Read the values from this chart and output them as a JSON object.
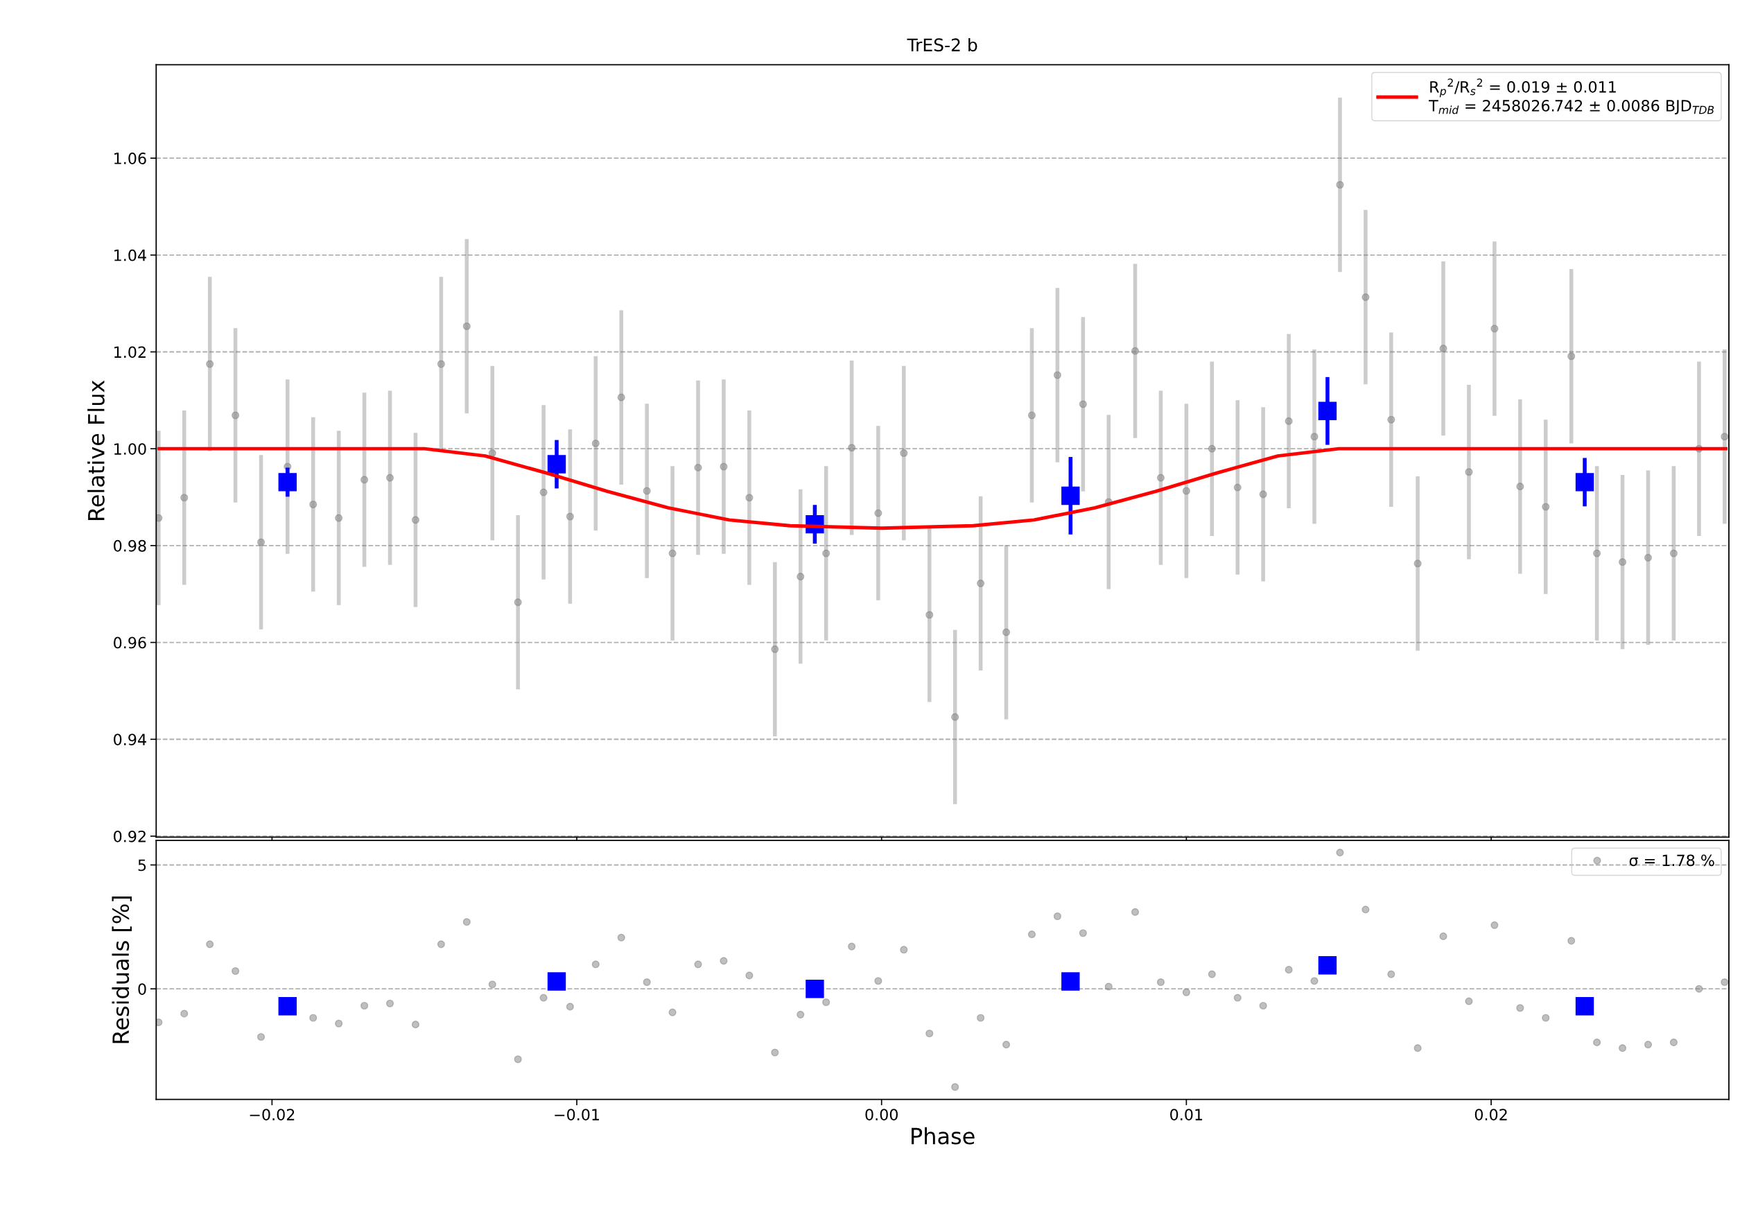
{
  "chart_data": [
    {
      "type": "scatter",
      "title": "TrES-2 b",
      "ylabel": "Relative Flux",
      "xlim": [
        -0.0238,
        0.0278
      ],
      "ylim": [
        0.9198,
        1.0793
      ],
      "xticks": [
        {
          "value": -0.02,
          "label": null
        },
        {
          "value": -0.01,
          "label": null
        },
        {
          "value": 0.0,
          "label": null
        },
        {
          "value": 0.01,
          "label": null
        },
        {
          "value": 0.02,
          "label": null
        }
      ],
      "yticks": [
        {
          "value": 0.92,
          "label": "0.92"
        },
        {
          "value": 0.94,
          "label": "0.94"
        },
        {
          "value": 0.96,
          "label": "0.96"
        },
        {
          "value": 0.98,
          "label": "0.98"
        },
        {
          "value": 1.0,
          "label": "1.00"
        },
        {
          "value": 1.02,
          "label": "1.02"
        },
        {
          "value": 1.04,
          "label": "1.04"
        },
        {
          "value": 1.06,
          "label": "1.06"
        }
      ],
      "tick_labels": "y",
      "grid": "y",
      "legend": "top right",
      "series": [
        {
          "color": "#808080",
          "marker": "circle",
          "x": [
            -0.02372,
            -0.02288,
            -0.02204,
            -0.0212,
            -0.02036,
            -0.01949,
            -0.01865,
            -0.01781,
            -0.01697,
            -0.01613,
            -0.01529,
            -0.01445,
            -0.01361,
            -0.01277,
            -0.01193,
            -0.01109,
            -0.01022,
            -0.00938,
            -0.00854,
            -0.0077,
            -0.00686,
            -0.00602,
            -0.00518,
            -0.00434,
            -0.0035,
            -0.00266,
            -0.00182,
            -0.00098,
            -0.00011,
            0.00073,
            0.00157,
            0.00241,
            0.00325,
            0.00409,
            0.00493,
            0.00577,
            0.00661,
            0.00745,
            0.00832,
            0.00916,
            0.01,
            0.01084,
            0.01168,
            0.01252,
            0.01336,
            0.0142,
            0.01504,
            0.01588,
            0.01672,
            0.01759,
            0.01843,
            0.01927,
            0.02011,
            0.02095,
            0.02179,
            0.02263,
            0.02347,
            0.02431,
            0.02515,
            0.02599,
            0.02682,
            0.02766
          ],
          "values": [
            0.9857,
            0.9899,
            1.0175,
            1.0069,
            0.9807,
            0.9963,
            0.9885,
            0.9857,
            0.9936,
            0.994,
            0.9853,
            1.0175,
            1.0253,
            0.9991,
            0.9683,
            0.991,
            0.986,
            1.0011,
            1.0106,
            0.9913,
            0.9784,
            0.9961,
            0.9963,
            0.9899,
            0.9586,
            0.9736,
            0.9784,
            1.0002,
            0.9867,
            0.9991,
            0.9657,
            0.9446,
            0.9722,
            0.9621,
            1.0069,
            1.0152,
            1.0092,
            0.989,
            1.0202,
            0.994,
            0.9913,
            1.0,
            0.992,
            0.9906,
            1.0057,
            1.0025,
            1.0545,
            1.0313,
            1.006,
            0.9763,
            1.0207,
            0.9952,
            1.0248,
            0.9922,
            0.988,
            1.0191,
            0.9784,
            0.9766,
            0.9775,
            0.9784,
            1.0,
            1.0025
          ],
          "errors": [
            0.018,
            0.018,
            0.018,
            0.018,
            0.018,
            0.018,
            0.018,
            0.018,
            0.018,
            0.018,
            0.018,
            0.018,
            0.018,
            0.018,
            0.018,
            0.018,
            0.018,
            0.018,
            0.018,
            0.018,
            0.018,
            0.018,
            0.018,
            0.018,
            0.018,
            0.018,
            0.018,
            0.018,
            0.018,
            0.018,
            0.018,
            0.018,
            0.018,
            0.018,
            0.018,
            0.018,
            0.018,
            0.018,
            0.018,
            0.018,
            0.018,
            0.018,
            0.018,
            0.018,
            0.018,
            0.018,
            0.018,
            0.018,
            0.018,
            0.018,
            0.018,
            0.018,
            0.018,
            0.018,
            0.018,
            0.018,
            0.018,
            0.018,
            0.018,
            0.018,
            0.018,
            0.018
          ]
        },
        {
          "type": "scatter",
          "color": "#0000ff",
          "marker": "square",
          "x": [
            -0.01949,
            -0.01066,
            -0.00219,
            0.0062,
            0.01463,
            0.02307
          ],
          "values": [
            0.9931,
            0.9968,
            0.9844,
            0.9903,
            1.0078,
            0.9931
          ],
          "errors": [
            0.003,
            0.005,
            0.004,
            0.008,
            0.007,
            0.005
          ]
        },
        {
          "type": "line",
          "color": "#ff0000",
          "name": "R$_{p}$$^{2}$/R$_{s}$$^{2}$ = 0.019 ± 0.011\nT$_{mid}$ = 2458026.742 ± 0.0086 BJD$_{TDB}$",
          "x": [
            -0.0237,
            -0.015,
            -0.013,
            -0.011,
            -0.009,
            -0.007,
            -0.005,
            -0.003,
            0.0,
            0.003,
            0.005,
            0.007,
            0.009,
            0.011,
            0.013,
            0.015,
            0.0277
          ],
          "values": [
            1.0,
            1.0,
            0.9985,
            0.995,
            0.9912,
            0.9878,
            0.9853,
            0.9841,
            0.9836,
            0.9841,
            0.9853,
            0.9878,
            0.9912,
            0.995,
            0.9985,
            1.0,
            1.0
          ]
        }
      ]
    },
    {
      "type": "scatter",
      "xlabel": "Phase",
      "ylabel": "Residuals [%]",
      "xlim": [
        -0.0238,
        0.0278
      ],
      "ylim": [
        -4.46,
        5.99
      ],
      "xticks": [
        {
          "value": -0.02,
          "label": "−0.02"
        },
        {
          "value": -0.01,
          "label": "−0.01"
        },
        {
          "value": 0.0,
          "label": "0.00"
        },
        {
          "value": 0.01,
          "label": "0.01"
        },
        {
          "value": 0.02,
          "label": "0.02"
        }
      ],
      "yticks": [
        0,
        5
      ],
      "grid": "y",
      "legend": "top right",
      "series": [
        {
          "color": "#808080",
          "marker": "circle",
          "name": "σ = 1.78 %",
          "x": [
            -0.02372,
            -0.02288,
            -0.02204,
            -0.0212,
            -0.02036,
            -0.01949,
            -0.01865,
            -0.01781,
            -0.01697,
            -0.01613,
            -0.01529,
            -0.01445,
            -0.01361,
            -0.01277,
            -0.01193,
            -0.01109,
            -0.01022,
            -0.00938,
            -0.00854,
            -0.0077,
            -0.00686,
            -0.00602,
            -0.00518,
            -0.00434,
            -0.0035,
            -0.00266,
            -0.00182,
            -0.00098,
            -0.00011,
            0.00073,
            0.00157,
            0.00241,
            0.00325,
            0.00409,
            0.00493,
            0.00577,
            0.00661,
            0.00745,
            0.00832,
            0.00916,
            0.01,
            0.01084,
            0.01168,
            0.01252,
            0.01336,
            0.0142,
            0.01504,
            0.01588,
            0.01672,
            0.01759,
            0.01843,
            0.01927,
            0.02011,
            0.02095,
            0.02179,
            0.02263,
            0.02347,
            0.02431,
            0.02515,
            0.02599,
            0.02682,
            0.02766
          ],
          "values": [
            -1.35,
            -1.0,
            1.8,
            0.72,
            -1.94,
            null,
            -1.17,
            -1.4,
            -0.68,
            -0.59,
            -1.44,
            1.8,
            2.7,
            0.18,
            -2.84,
            -0.36,
            -0.72,
            0.99,
            2.07,
            0.27,
            -0.95,
            0.99,
            1.13,
            0.54,
            -2.57,
            -1.04,
            -0.54,
            1.71,
            0.32,
            1.58,
            -1.8,
            -3.96,
            -1.17,
            -2.25,
            2.2,
            2.93,
            2.25,
            0.09,
            3.1,
            0.27,
            -0.14,
            0.59,
            -0.36,
            -0.68,
            0.77,
            0.32,
            5.5,
            3.2,
            0.59,
            -2.39,
            2.12,
            -0.5,
            2.57,
            -0.77,
            -1.17,
            1.94,
            -2.16,
            -2.39,
            -2.25,
            -2.16,
            0.0,
            0.27
          ]
        },
        {
          "type": "scatter",
          "color": "#0000ff",
          "marker": "square",
          "x": [
            -0.01949,
            -0.01066,
            -0.00219,
            0.0062,
            0.01463,
            0.02307
          ],
          "values": [
            -0.7,
            0.3,
            0.0,
            0.3,
            0.95,
            -0.7
          ]
        }
      ]
    }
  ]
}
